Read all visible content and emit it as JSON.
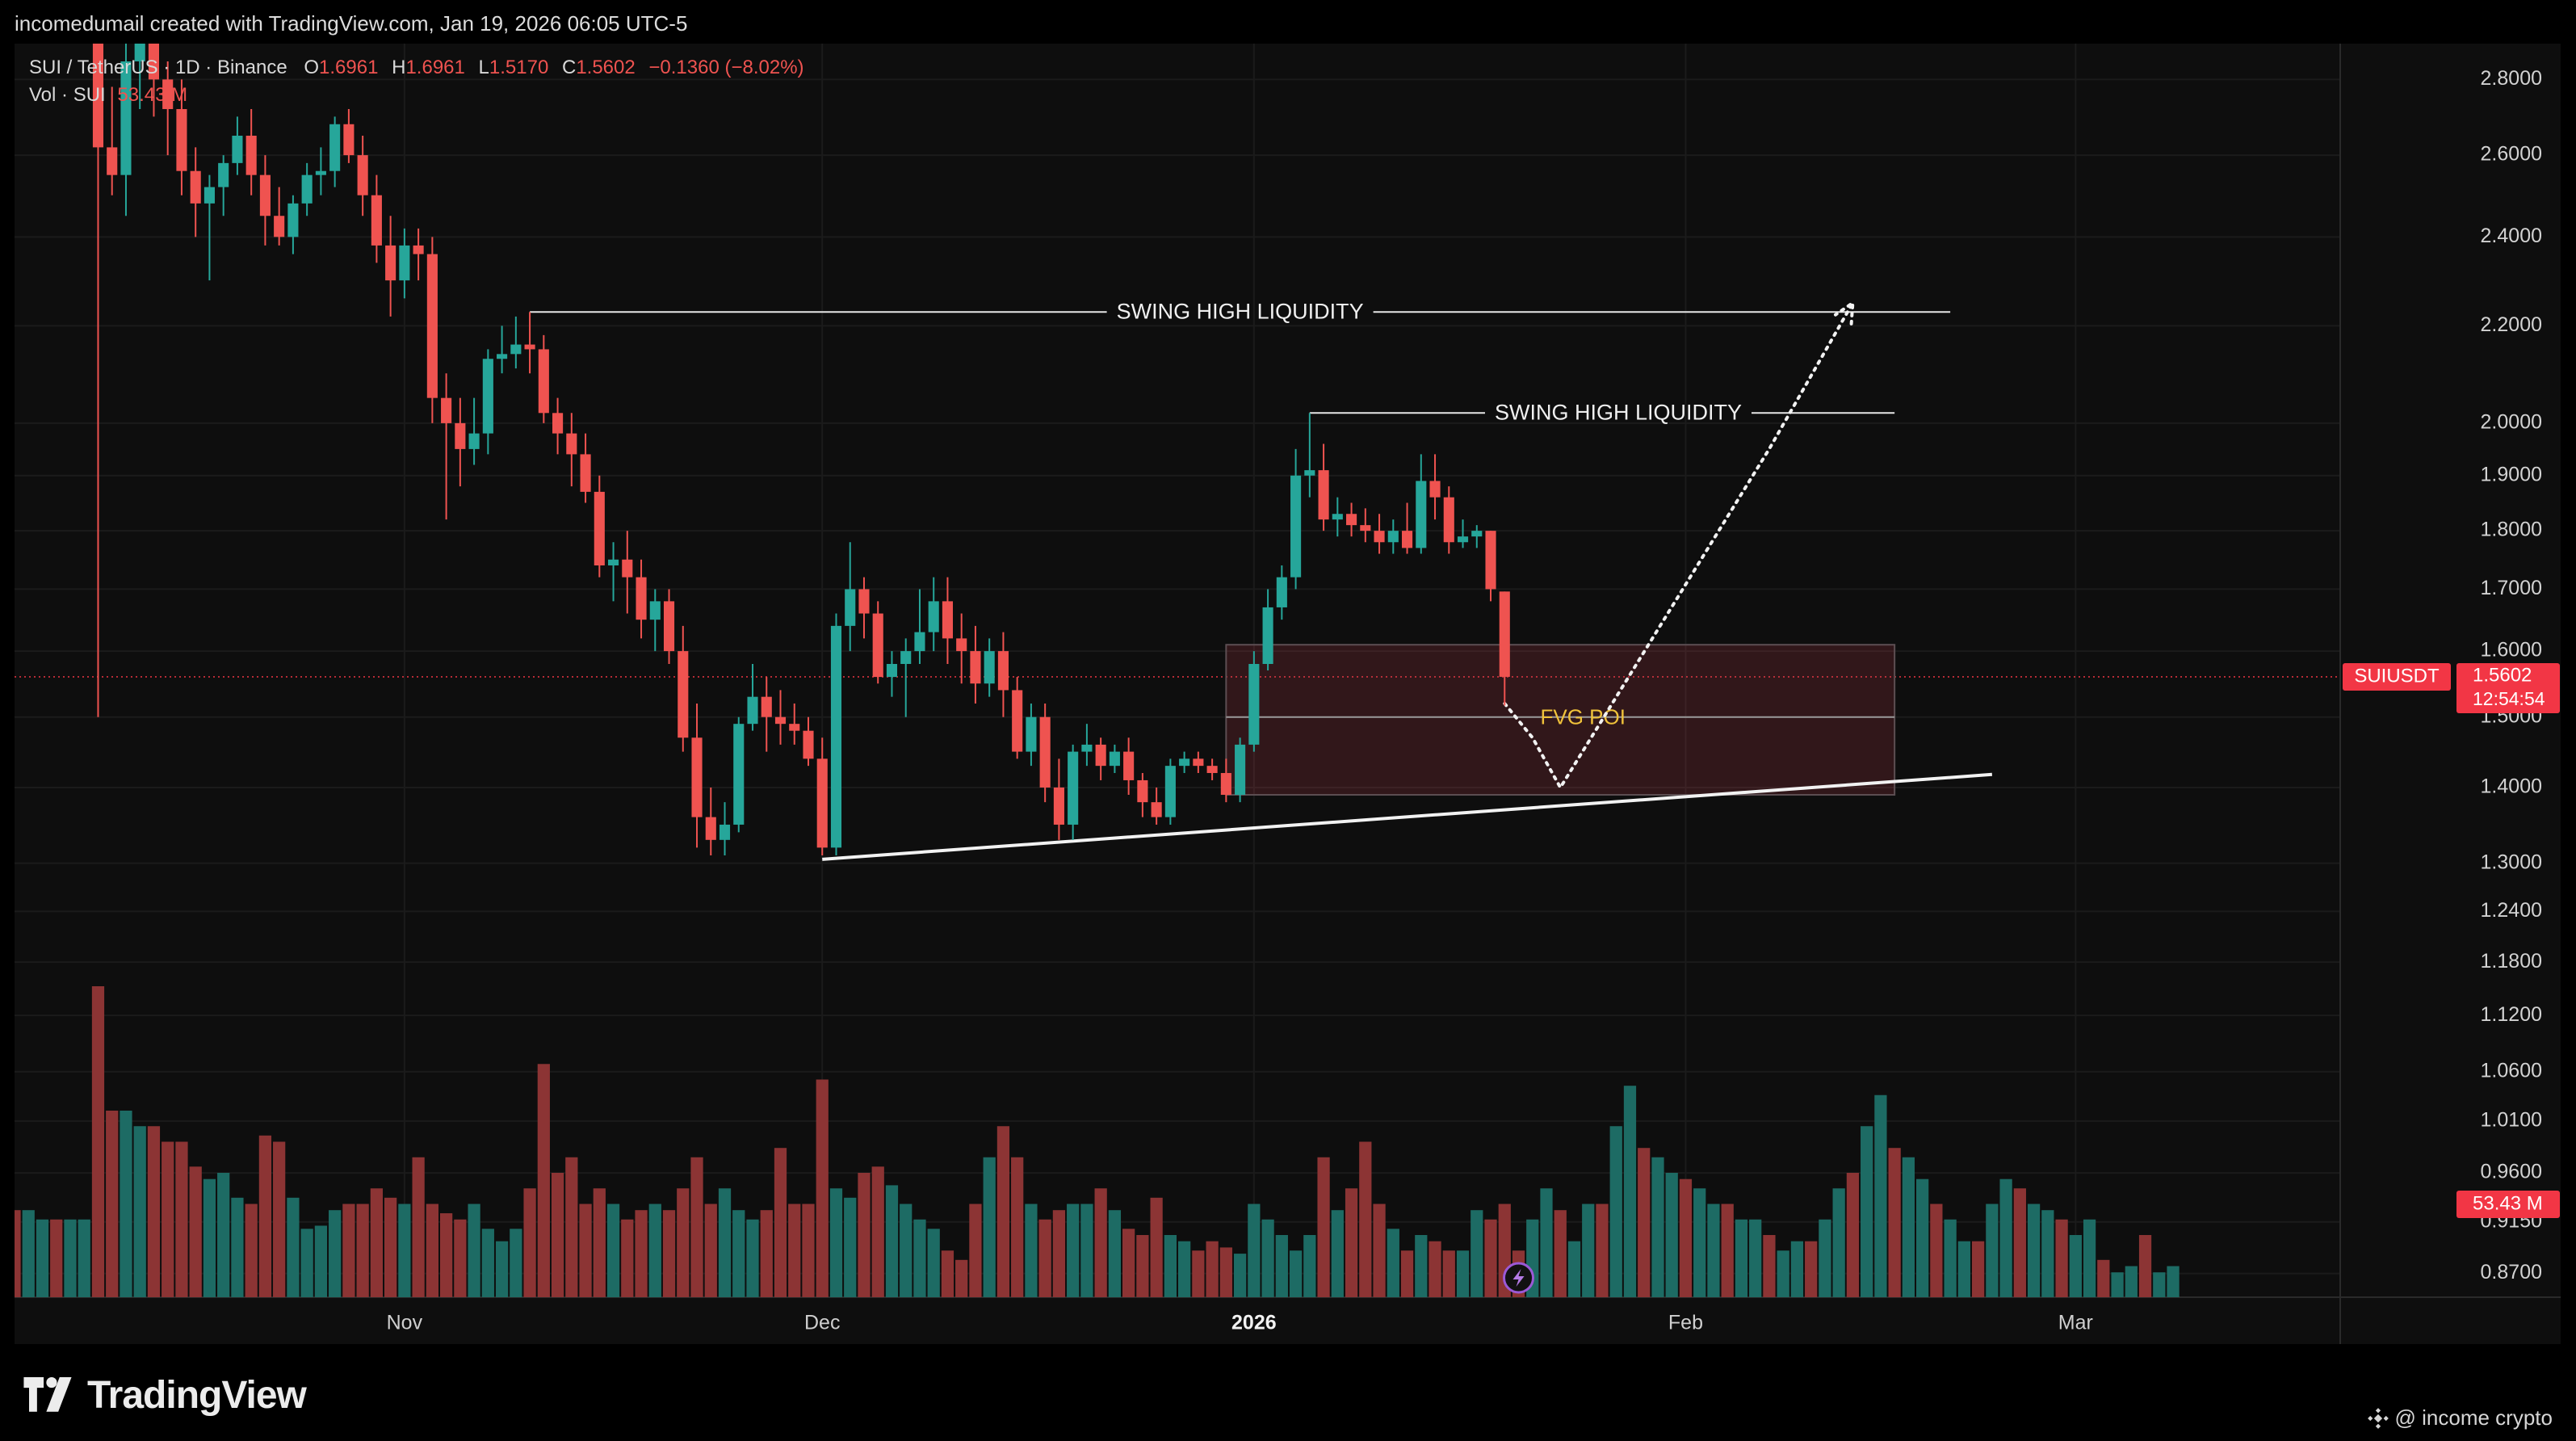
{
  "header": {
    "text": "incomedumail created with TradingView.com, Jan 19, 2026 06:05 UTC-5"
  },
  "legend": {
    "symbol": "SUI / TetherUS · 1D · Binance",
    "o_label": "O",
    "o_value": "1.6961",
    "h_label": "H",
    "h_value": "1.6961",
    "l_label": "L",
    "l_value": "1.5170",
    "c_label": "C",
    "c_value": "1.5602",
    "change": "−0.1360 (−8.02%)",
    "vol_label": "Vol · SUI",
    "vol_value": "53.43 M"
  },
  "annotations": {
    "swing_high_1": "SWING HIGH LIQUIDITY",
    "swing_high_2": "SWING HIGH LIQUIDITY",
    "fvg": "FVG POI"
  },
  "price_tag": {
    "ticker": "SUIUSDT",
    "price": "1.5602",
    "countdown": "12:54:54",
    "volume": "53.43 M"
  },
  "footer": {
    "brand": "TradingView",
    "credit": "@ income crypto"
  },
  "colors": {
    "bull": "#26a69a",
    "bear": "#ef5350",
    "bull_vol": "#1d6b64",
    "bear_vol": "#8c3434",
    "tag_red": "#f23645",
    "label_yellow": "#f0c23a"
  },
  "chart_data": {
    "type": "candlestick",
    "symbol": "SUI / TetherUS",
    "interval": "1D",
    "exchange": "Binance",
    "y_scale": "log",
    "ylim": [
      0.85,
      2.9
    ],
    "x_range": [
      "2025-10-04",
      "2026-03-20"
    ],
    "y_ticks": [
      "2.8000",
      "2.6000",
      "2.4000",
      "2.2000",
      "2.0000",
      "1.9000",
      "1.8000",
      "1.7000",
      "1.6000",
      "1.5000",
      "1.4000",
      "1.3000",
      "1.2400",
      "1.1800",
      "1.1200",
      "1.0600",
      "1.0100",
      "0.9600",
      "0.9150",
      "0.8700"
    ],
    "x_ticks": [
      {
        "label": "Nov",
        "date": "2025-11-01"
      },
      {
        "label": "Dec",
        "date": "2025-12-01"
      },
      {
        "label": "2026",
        "date": "2026-01-01"
      },
      {
        "label": "Feb",
        "date": "2026-02-01"
      },
      {
        "label": "Mar",
        "date": "2026-03-01"
      }
    ],
    "candles": [
      {
        "date": "2025-10-10",
        "o": 3.05,
        "h": 3.1,
        "l": 1.5,
        "c": 2.62
      },
      {
        "date": "2025-10-11",
        "o": 2.62,
        "h": 2.78,
        "l": 2.5,
        "c": 2.55
      },
      {
        "date": "2025-10-12",
        "o": 2.55,
        "h": 2.92,
        "l": 2.45,
        "c": 2.85
      },
      {
        "date": "2025-10-13",
        "o": 2.85,
        "h": 2.95,
        "l": 2.72,
        "c": 2.9
      },
      {
        "date": "2025-10-14",
        "o": 2.9,
        "h": 2.95,
        "l": 2.7,
        "c": 2.8
      },
      {
        "date": "2025-10-15",
        "o": 2.8,
        "h": 2.85,
        "l": 2.6,
        "c": 2.72
      },
      {
        "date": "2025-10-16",
        "o": 2.72,
        "h": 2.8,
        "l": 2.5,
        "c": 2.56
      },
      {
        "date": "2025-10-17",
        "o": 2.56,
        "h": 2.62,
        "l": 2.4,
        "c": 2.48
      },
      {
        "date": "2025-10-18",
        "o": 2.48,
        "h": 2.55,
        "l": 2.3,
        "c": 2.52
      },
      {
        "date": "2025-10-19",
        "o": 2.52,
        "h": 2.6,
        "l": 2.45,
        "c": 2.58
      },
      {
        "date": "2025-10-20",
        "o": 2.58,
        "h": 2.7,
        "l": 2.55,
        "c": 2.65
      },
      {
        "date": "2025-10-21",
        "o": 2.65,
        "h": 2.72,
        "l": 2.5,
        "c": 2.55
      },
      {
        "date": "2025-10-22",
        "o": 2.55,
        "h": 2.6,
        "l": 2.38,
        "c": 2.45
      },
      {
        "date": "2025-10-23",
        "o": 2.45,
        "h": 2.52,
        "l": 2.38,
        "c": 2.4
      },
      {
        "date": "2025-10-24",
        "o": 2.4,
        "h": 2.5,
        "l": 2.36,
        "c": 2.48
      },
      {
        "date": "2025-10-25",
        "o": 2.48,
        "h": 2.58,
        "l": 2.45,
        "c": 2.55
      },
      {
        "date": "2025-10-26",
        "o": 2.55,
        "h": 2.62,
        "l": 2.5,
        "c": 2.56
      },
      {
        "date": "2025-10-27",
        "o": 2.56,
        "h": 2.7,
        "l": 2.52,
        "c": 2.68
      },
      {
        "date": "2025-10-28",
        "o": 2.68,
        "h": 2.72,
        "l": 2.58,
        "c": 2.6
      },
      {
        "date": "2025-10-29",
        "o": 2.6,
        "h": 2.65,
        "l": 2.45,
        "c": 2.5
      },
      {
        "date": "2025-10-30",
        "o": 2.5,
        "h": 2.55,
        "l": 2.34,
        "c": 2.38
      },
      {
        "date": "2025-10-31",
        "o": 2.38,
        "h": 2.45,
        "l": 2.22,
        "c": 2.3
      },
      {
        "date": "2025-11-01",
        "o": 2.3,
        "h": 2.42,
        "l": 2.26,
        "c": 2.38
      },
      {
        "date": "2025-11-02",
        "o": 2.38,
        "h": 2.42,
        "l": 2.3,
        "c": 2.36
      },
      {
        "date": "2025-11-03",
        "o": 2.36,
        "h": 2.4,
        "l": 2.0,
        "c": 2.05
      },
      {
        "date": "2025-11-04",
        "o": 2.05,
        "h": 2.1,
        "l": 1.82,
        "c": 2.0
      },
      {
        "date": "2025-11-05",
        "o": 2.0,
        "h": 2.05,
        "l": 1.88,
        "c": 1.95
      },
      {
        "date": "2025-11-06",
        "o": 1.95,
        "h": 2.05,
        "l": 1.92,
        "c": 1.98
      },
      {
        "date": "2025-11-07",
        "o": 1.98,
        "h": 2.15,
        "l": 1.94,
        "c": 2.13
      },
      {
        "date": "2025-11-08",
        "o": 2.13,
        "h": 2.2,
        "l": 2.1,
        "c": 2.14
      },
      {
        "date": "2025-11-09",
        "o": 2.14,
        "h": 2.22,
        "l": 2.11,
        "c": 2.16
      },
      {
        "date": "2025-11-10",
        "o": 2.16,
        "h": 2.23,
        "l": 2.1,
        "c": 2.15
      },
      {
        "date": "2025-11-11",
        "o": 2.15,
        "h": 2.18,
        "l": 2.0,
        "c": 2.02
      },
      {
        "date": "2025-11-12",
        "o": 2.02,
        "h": 2.05,
        "l": 1.94,
        "c": 1.98
      },
      {
        "date": "2025-11-13",
        "o": 1.98,
        "h": 2.02,
        "l": 1.88,
        "c": 1.94
      },
      {
        "date": "2025-11-14",
        "o": 1.94,
        "h": 1.98,
        "l": 1.85,
        "c": 1.87
      },
      {
        "date": "2025-11-15",
        "o": 1.87,
        "h": 1.9,
        "l": 1.72,
        "c": 1.74
      },
      {
        "date": "2025-11-16",
        "o": 1.74,
        "h": 1.78,
        "l": 1.68,
        "c": 1.75
      },
      {
        "date": "2025-11-17",
        "o": 1.75,
        "h": 1.8,
        "l": 1.66,
        "c": 1.72
      },
      {
        "date": "2025-11-18",
        "o": 1.72,
        "h": 1.75,
        "l": 1.62,
        "c": 1.65
      },
      {
        "date": "2025-11-19",
        "o": 1.65,
        "h": 1.7,
        "l": 1.6,
        "c": 1.68
      },
      {
        "date": "2025-11-20",
        "o": 1.68,
        "h": 1.7,
        "l": 1.58,
        "c": 1.6
      },
      {
        "date": "2025-11-21",
        "o": 1.6,
        "h": 1.64,
        "l": 1.45,
        "c": 1.47
      },
      {
        "date": "2025-11-22",
        "o": 1.47,
        "h": 1.52,
        "l": 1.32,
        "c": 1.36
      },
      {
        "date": "2025-11-23",
        "o": 1.36,
        "h": 1.4,
        "l": 1.31,
        "c": 1.33
      },
      {
        "date": "2025-11-24",
        "o": 1.33,
        "h": 1.38,
        "l": 1.31,
        "c": 1.35
      },
      {
        "date": "2025-11-25",
        "o": 1.35,
        "h": 1.5,
        "l": 1.34,
        "c": 1.49
      },
      {
        "date": "2025-11-26",
        "o": 1.49,
        "h": 1.58,
        "l": 1.48,
        "c": 1.53
      },
      {
        "date": "2025-11-27",
        "o": 1.53,
        "h": 1.56,
        "l": 1.45,
        "c": 1.5
      },
      {
        "date": "2025-11-28",
        "o": 1.5,
        "h": 1.54,
        "l": 1.46,
        "c": 1.49
      },
      {
        "date": "2025-11-29",
        "o": 1.49,
        "h": 1.52,
        "l": 1.46,
        "c": 1.48
      },
      {
        "date": "2025-11-30",
        "o": 1.48,
        "h": 1.5,
        "l": 1.43,
        "c": 1.44
      },
      {
        "date": "2025-12-01",
        "o": 1.44,
        "h": 1.47,
        "l": 1.31,
        "c": 1.32
      },
      {
        "date": "2025-12-02",
        "o": 1.32,
        "h": 1.66,
        "l": 1.31,
        "c": 1.64
      },
      {
        "date": "2025-12-03",
        "o": 1.64,
        "h": 1.78,
        "l": 1.6,
        "c": 1.7
      },
      {
        "date": "2025-12-04",
        "o": 1.7,
        "h": 1.72,
        "l": 1.62,
        "c": 1.66
      },
      {
        "date": "2025-12-05",
        "o": 1.66,
        "h": 1.68,
        "l": 1.55,
        "c": 1.56
      },
      {
        "date": "2025-12-06",
        "o": 1.56,
        "h": 1.6,
        "l": 1.53,
        "c": 1.58
      },
      {
        "date": "2025-12-07",
        "o": 1.58,
        "h": 1.62,
        "l": 1.5,
        "c": 1.6
      },
      {
        "date": "2025-12-08",
        "o": 1.6,
        "h": 1.7,
        "l": 1.58,
        "c": 1.63
      },
      {
        "date": "2025-12-09",
        "o": 1.63,
        "h": 1.72,
        "l": 1.6,
        "c": 1.68
      },
      {
        "date": "2025-12-10",
        "o": 1.68,
        "h": 1.72,
        "l": 1.58,
        "c": 1.62
      },
      {
        "date": "2025-12-11",
        "o": 1.62,
        "h": 1.66,
        "l": 1.55,
        "c": 1.6
      },
      {
        "date": "2025-12-12",
        "o": 1.6,
        "h": 1.64,
        "l": 1.52,
        "c": 1.55
      },
      {
        "date": "2025-12-13",
        "o": 1.55,
        "h": 1.62,
        "l": 1.53,
        "c": 1.6
      },
      {
        "date": "2025-12-14",
        "o": 1.6,
        "h": 1.63,
        "l": 1.5,
        "c": 1.54
      },
      {
        "date": "2025-12-15",
        "o": 1.54,
        "h": 1.56,
        "l": 1.44,
        "c": 1.45
      },
      {
        "date": "2025-12-16",
        "o": 1.45,
        "h": 1.52,
        "l": 1.43,
        "c": 1.5
      },
      {
        "date": "2025-12-17",
        "o": 1.5,
        "h": 1.52,
        "l": 1.38,
        "c": 1.4
      },
      {
        "date": "2025-12-18",
        "o": 1.4,
        "h": 1.44,
        "l": 1.33,
        "c": 1.35
      },
      {
        "date": "2025-12-19",
        "o": 1.35,
        "h": 1.46,
        "l": 1.33,
        "c": 1.45
      },
      {
        "date": "2025-12-20",
        "o": 1.45,
        "h": 1.49,
        "l": 1.43,
        "c": 1.46
      },
      {
        "date": "2025-12-21",
        "o": 1.46,
        "h": 1.47,
        "l": 1.41,
        "c": 1.43
      },
      {
        "date": "2025-12-22",
        "o": 1.43,
        "h": 1.46,
        "l": 1.42,
        "c": 1.45
      },
      {
        "date": "2025-12-23",
        "o": 1.45,
        "h": 1.47,
        "l": 1.39,
        "c": 1.41
      },
      {
        "date": "2025-12-24",
        "o": 1.41,
        "h": 1.42,
        "l": 1.36,
        "c": 1.38
      },
      {
        "date": "2025-12-25",
        "o": 1.38,
        "h": 1.4,
        "l": 1.35,
        "c": 1.36
      },
      {
        "date": "2025-12-26",
        "o": 1.36,
        "h": 1.44,
        "l": 1.35,
        "c": 1.43
      },
      {
        "date": "2025-12-27",
        "o": 1.43,
        "h": 1.45,
        "l": 1.42,
        "c": 1.44
      },
      {
        "date": "2025-12-28",
        "o": 1.44,
        "h": 1.45,
        "l": 1.42,
        "c": 1.43
      },
      {
        "date": "2025-12-29",
        "o": 1.43,
        "h": 1.44,
        "l": 1.41,
        "c": 1.42
      },
      {
        "date": "2025-12-30",
        "o": 1.42,
        "h": 1.44,
        "l": 1.38,
        "c": 1.39
      },
      {
        "date": "2025-12-31",
        "o": 1.39,
        "h": 1.47,
        "l": 1.38,
        "c": 1.46
      },
      {
        "date": "2026-01-01",
        "o": 1.46,
        "h": 1.6,
        "l": 1.45,
        "c": 1.58
      },
      {
        "date": "2026-01-02",
        "o": 1.58,
        "h": 1.7,
        "l": 1.57,
        "c": 1.67
      },
      {
        "date": "2026-01-03",
        "o": 1.67,
        "h": 1.74,
        "l": 1.65,
        "c": 1.72
      },
      {
        "date": "2026-01-04",
        "o": 1.72,
        "h": 1.95,
        "l": 1.7,
        "c": 1.9
      },
      {
        "date": "2026-01-05",
        "o": 1.9,
        "h": 2.02,
        "l": 1.86,
        "c": 1.91
      },
      {
        "date": "2026-01-06",
        "o": 1.91,
        "h": 1.96,
        "l": 1.8,
        "c": 1.82
      },
      {
        "date": "2026-01-07",
        "o": 1.82,
        "h": 1.86,
        "l": 1.79,
        "c": 1.83
      },
      {
        "date": "2026-01-08",
        "o": 1.83,
        "h": 1.85,
        "l": 1.79,
        "c": 1.81
      },
      {
        "date": "2026-01-09",
        "o": 1.81,
        "h": 1.84,
        "l": 1.78,
        "c": 1.8
      },
      {
        "date": "2026-01-10",
        "o": 1.8,
        "h": 1.83,
        "l": 1.76,
        "c": 1.78
      },
      {
        "date": "2026-01-11",
        "o": 1.78,
        "h": 1.82,
        "l": 1.76,
        "c": 1.8
      },
      {
        "date": "2026-01-12",
        "o": 1.8,
        "h": 1.85,
        "l": 1.76,
        "c": 1.77
      },
      {
        "date": "2026-01-13",
        "o": 1.77,
        "h": 1.94,
        "l": 1.76,
        "c": 1.89
      },
      {
        "date": "2026-01-14",
        "o": 1.89,
        "h": 1.94,
        "l": 1.82,
        "c": 1.86
      },
      {
        "date": "2026-01-15",
        "o": 1.86,
        "h": 1.88,
        "l": 1.76,
        "c": 1.78
      },
      {
        "date": "2026-01-16",
        "o": 1.78,
        "h": 1.82,
        "l": 1.77,
        "c": 1.79
      },
      {
        "date": "2026-01-17",
        "o": 1.79,
        "h": 1.81,
        "l": 1.77,
        "c": 1.8
      },
      {
        "date": "2026-01-18",
        "o": 1.8,
        "h": 1.8,
        "l": 1.68,
        "c": 1.7
      },
      {
        "date": "2026-01-19",
        "o": 1.6961,
        "h": 1.6961,
        "l": 1.517,
        "c": 1.5602
      }
    ],
    "volume_start": "2025-09-30",
    "volume": [
      0.22,
      0.28,
      0.28,
      0.25,
      0.28,
      0.28,
      0.25,
      0.25,
      0.25,
      0.25,
      1.0,
      0.6,
      0.6,
      0.55,
      0.55,
      0.5,
      0.5,
      0.42,
      0.38,
      0.4,
      0.32,
      0.3,
      0.52,
      0.5,
      0.32,
      0.22,
      0.23,
      0.28,
      0.3,
      0.3,
      0.35,
      0.32,
      0.3,
      0.45,
      0.3,
      0.27,
      0.25,
      0.3,
      0.22,
      0.18,
      0.22,
      0.35,
      0.75,
      0.4,
      0.45,
      0.3,
      0.35,
      0.3,
      0.25,
      0.28,
      0.3,
      0.28,
      0.35,
      0.45,
      0.3,
      0.35,
      0.28,
      0.25,
      0.28,
      0.48,
      0.3,
      0.3,
      0.7,
      0.35,
      0.32,
      0.4,
      0.42,
      0.36,
      0.3,
      0.25,
      0.22,
      0.15,
      0.12,
      0.3,
      0.45,
      0.55,
      0.45,
      0.3,
      0.25,
      0.28,
      0.3,
      0.3,
      0.35,
      0.28,
      0.22,
      0.2,
      0.32,
      0.2,
      0.18,
      0.15,
      0.18,
      0.16,
      0.14,
      0.3,
      0.25,
      0.2,
      0.15,
      0.2,
      0.45,
      0.28,
      0.35,
      0.5,
      0.3,
      0.22,
      0.15,
      0.2,
      0.18,
      0.15,
      0.15,
      0.28,
      0.25,
      0.3,
      0.15,
      0.25,
      0.35,
      0.28,
      0.18,
      0.3,
      0.3,
      0.55,
      0.68,
      0.48,
      0.45,
      0.4,
      0.38,
      0.35,
      0.3,
      0.3,
      0.25,
      0.25,
      0.2,
      0.15,
      0.18,
      0.18,
      0.25,
      0.35,
      0.4,
      0.55,
      0.65,
      0.48,
      0.45,
      0.38,
      0.3,
      0.25,
      0.18,
      0.18,
      0.3,
      0.38,
      0.35,
      0.3,
      0.28,
      0.25,
      0.2,
      0.25,
      0.12,
      0.08,
      0.1,
      0.2,
      0.08,
      0.1
    ],
    "annotations": [
      {
        "type": "hline",
        "label": "SWING HIGH LIQUIDITY",
        "y": 2.23,
        "x_from": "2025-11-10",
        "x_to": "2026-02-20"
      },
      {
        "type": "hline",
        "label": "SWING HIGH LIQUIDITY",
        "y": 2.02,
        "x_from": "2026-01-05",
        "x_to": "2026-02-16"
      },
      {
        "type": "zone",
        "label": "FVG POI",
        "y_from": 1.39,
        "y_to": 1.61,
        "mid": 1.5,
        "x_from": "2025-12-30",
        "x_to": "2026-02-16"
      },
      {
        "type": "trendline",
        "points": [
          [
            "2025-12-01",
            1.305
          ],
          [
            "2026-02-23",
            1.418
          ]
        ]
      },
      {
        "type": "projection",
        "points": [
          [
            "2026-01-19",
            1.52
          ],
          [
            "2026-01-21",
            1.47
          ],
          [
            "2026-01-23",
            1.4
          ],
          [
            "2026-02-07",
            1.95
          ],
          [
            "2026-02-13",
            2.25
          ]
        ]
      }
    ]
  }
}
